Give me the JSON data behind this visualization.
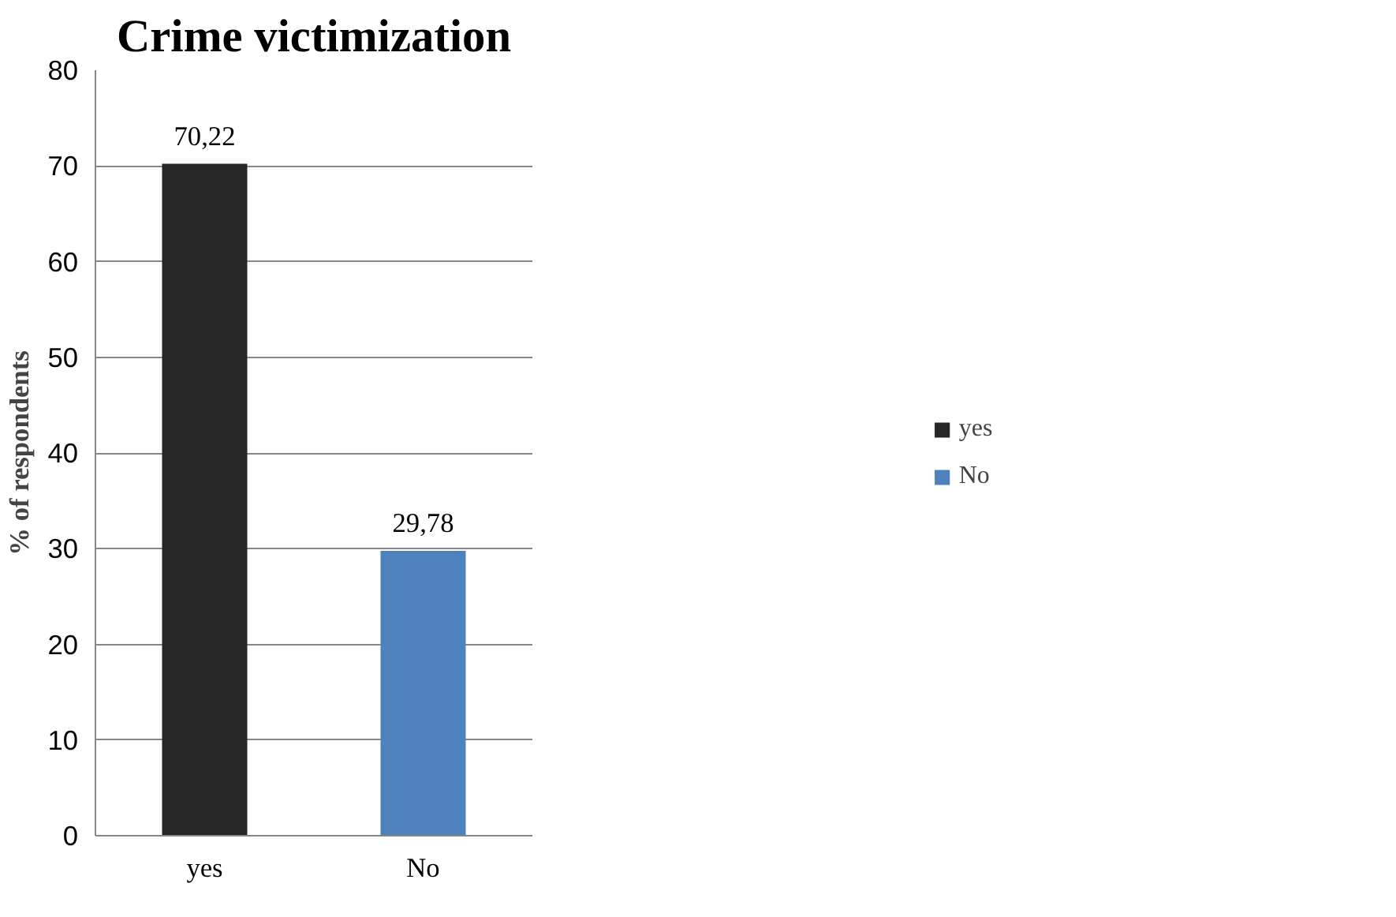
{
  "chart_data": {
    "type": "bar",
    "title": "Crime victimization",
    "ylabel": "% of respondents",
    "categories": [
      "yes",
      "No"
    ],
    "series": [
      {
        "name": "yes",
        "color": "#262626",
        "values": [
          70.22,
          null
        ],
        "value_labels": [
          "70,22",
          null
        ]
      },
      {
        "name": "No",
        "color": "#4f81bd",
        "values": [
          null,
          29.78
        ],
        "value_labels": [
          null,
          "29,78"
        ]
      }
    ],
    "ylim": [
      0,
      80
    ],
    "yticks": [
      0,
      10,
      20,
      30,
      40,
      50,
      60,
      70,
      80
    ],
    "grid": "y",
    "legend": "right"
  }
}
